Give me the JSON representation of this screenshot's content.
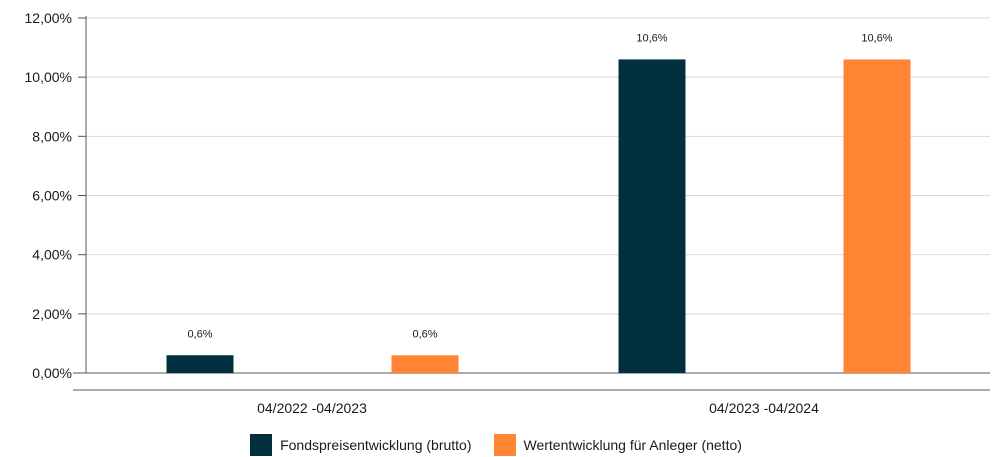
{
  "chart_data": {
    "type": "bar",
    "categories": [
      "04/2022 -04/2023",
      "04/2023 -04/2024"
    ],
    "series": [
      {
        "name": "Fondspreisentwicklung (brutto)",
        "values": [
          0.6,
          10.6
        ],
        "labels": [
          "0,6%",
          "10,6%"
        ],
        "color": "#02303f"
      },
      {
        "name": "Wertentwicklung für Anleger (netto)",
        "values": [
          0.6,
          10.6
        ],
        "labels": [
          "0,6%",
          "10,6%"
        ],
        "color": "#ff8533"
      }
    ],
    "yticks": [
      0,
      2,
      4,
      6,
      8,
      10,
      12
    ],
    "ytick_labels": [
      "0,00%",
      "2,00%",
      "4,00%",
      "6,00%",
      "8,00%",
      "10,00%",
      "12,00%"
    ],
    "ylim": [
      0,
      12
    ],
    "grid": true,
    "legend_position": "bottom",
    "title": "",
    "xlabel": "",
    "ylabel": ""
  }
}
